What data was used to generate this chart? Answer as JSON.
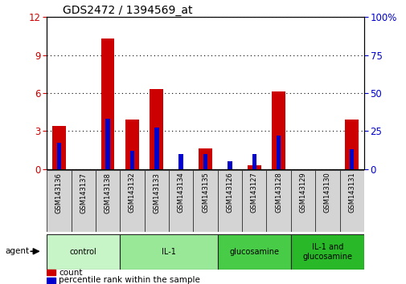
{
  "title": "GDS2472 / 1394569_at",
  "samples": [
    "GSM143136",
    "GSM143137",
    "GSM143138",
    "GSM143132",
    "GSM143133",
    "GSM143134",
    "GSM143135",
    "GSM143126",
    "GSM143127",
    "GSM143128",
    "GSM143129",
    "GSM143130",
    "GSM143131"
  ],
  "count_values": [
    3.4,
    0.0,
    10.3,
    3.9,
    6.3,
    0.0,
    1.6,
    0.0,
    0.3,
    6.1,
    0.0,
    0.0,
    3.9
  ],
  "percentile_values": [
    17,
    0,
    33,
    12,
    27,
    10,
    10,
    5,
    10,
    22,
    0,
    0,
    13
  ],
  "groups": [
    {
      "label": "control",
      "start": 0,
      "end": 3,
      "color": "#c8f5c8"
    },
    {
      "label": "IL-1",
      "start": 3,
      "end": 7,
      "color": "#98e898"
    },
    {
      "label": "glucosamine",
      "start": 7,
      "end": 10,
      "color": "#48cc48"
    },
    {
      "label": "IL-1 and\nglucosamine",
      "start": 10,
      "end": 13,
      "color": "#28b828"
    }
  ],
  "ylim_left": [
    0,
    12
  ],
  "ylim_right": [
    0,
    100
  ],
  "yticks_left": [
    0,
    3,
    6,
    9,
    12
  ],
  "yticks_right": [
    0,
    25,
    50,
    75,
    100
  ],
  "bar_color_red": "#cc0000",
  "bar_color_blue": "#0000cc",
  "bg_color": "#ffffff",
  "tick_color_left": "#cc0000",
  "tick_color_right": "#0000cc",
  "legend_count_label": "count",
  "legend_percentile_label": "percentile rank within the sample",
  "agent_label": "agent"
}
